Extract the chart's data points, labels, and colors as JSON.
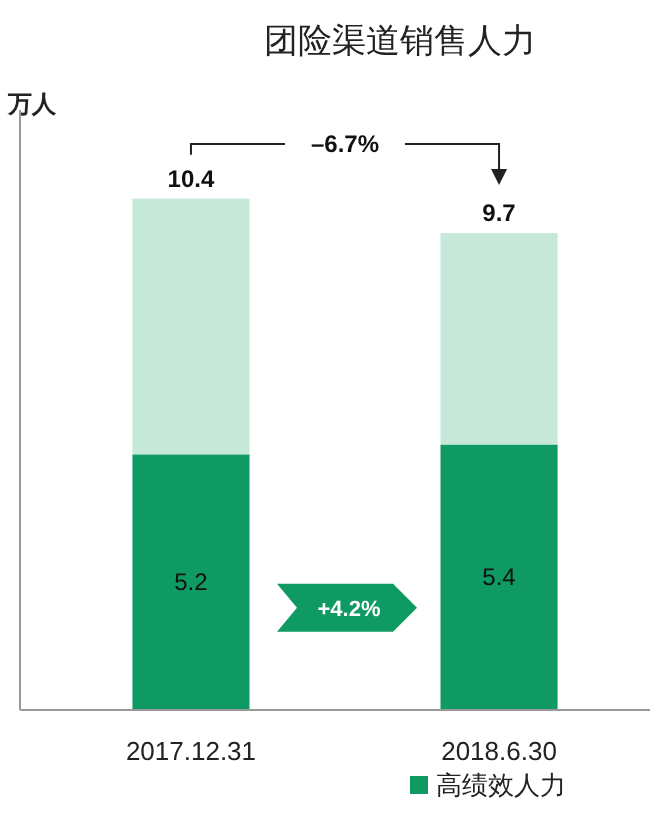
{
  "chart_data": {
    "type": "bar",
    "title": "团险渠道销售人力",
    "ylabel": "万人",
    "categories": [
      "2017.12.31",
      "2018.6.30"
    ],
    "stacked": true,
    "ylim": [
      0,
      12
    ],
    "series": [
      {
        "name": "高绩效人力",
        "color": "#0f9963",
        "values": [
          5.2,
          5.4
        ],
        "value_labels": [
          "5.2",
          "5.4"
        ]
      },
      {
        "color": "#c5e8d8",
        "values": [
          5.2,
          4.3
        ]
      }
    ],
    "totals": [
      "10.4",
      "9.7"
    ],
    "annotations": [
      "–6.7%",
      "+4.2%"
    ],
    "legend": "bottom"
  }
}
